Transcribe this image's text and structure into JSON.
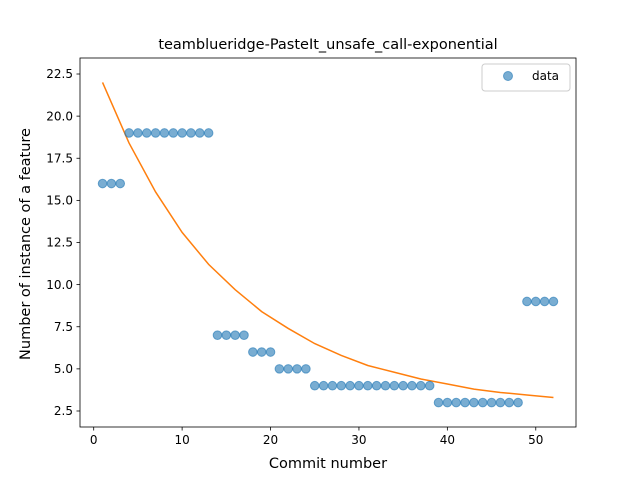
{
  "chart_data": {
    "type": "scatter",
    "title": "teamblueridge-PasteIt_unsafe_call-exponential",
    "xlabel": "Commit number",
    "ylabel": "Number of instance of a feature",
    "xlim": [
      -1.55,
      54.55
    ],
    "ylim": [
      1.55,
      23.45
    ],
    "xticks": [
      0,
      10,
      20,
      30,
      40,
      50
    ],
    "yticks": [
      2.5,
      5.0,
      7.5,
      10.0,
      12.5,
      15.0,
      17.5,
      20.0,
      22.5
    ],
    "ytick_labels": [
      "2.5",
      "5.0",
      "7.5",
      "10.0",
      "12.5",
      "15.0",
      "17.5",
      "20.0",
      "22.5"
    ],
    "grid": false,
    "legend_position": "top-right",
    "series": [
      {
        "name": "data",
        "kind": "scatter",
        "color": "#1f77b4",
        "x": [
          1,
          2,
          3,
          4,
          5,
          6,
          7,
          8,
          9,
          10,
          11,
          12,
          13,
          14,
          15,
          16,
          17,
          18,
          19,
          20,
          21,
          22,
          23,
          24,
          25,
          26,
          27,
          28,
          29,
          30,
          31,
          32,
          33,
          34,
          35,
          36,
          37,
          38,
          39,
          40,
          41,
          42,
          43,
          44,
          45,
          46,
          47,
          48,
          49,
          50,
          51,
          52
        ],
        "y": [
          16,
          16,
          16,
          19,
          19,
          19,
          19,
          19,
          19,
          19,
          19,
          19,
          19,
          7,
          7,
          7,
          7,
          6,
          6,
          6,
          5,
          5,
          5,
          5,
          4,
          4,
          4,
          4,
          4,
          4,
          4,
          4,
          4,
          4,
          4,
          4,
          4,
          4,
          3,
          3,
          3,
          3,
          3,
          3,
          3,
          3,
          3,
          3,
          9,
          9,
          9,
          9
        ]
      },
      {
        "kind": "line",
        "color": "#ff7f0e",
        "x": [
          1,
          4,
          7,
          10,
          13,
          16,
          19,
          22,
          25,
          28,
          31,
          34,
          37,
          40,
          43,
          46,
          49,
          52
        ],
        "y": [
          22.0,
          18.4,
          15.5,
          13.1,
          11.2,
          9.7,
          8.4,
          7.4,
          6.5,
          5.8,
          5.2,
          4.8,
          4.4,
          4.1,
          3.8,
          3.6,
          3.45,
          3.3
        ]
      }
    ]
  }
}
